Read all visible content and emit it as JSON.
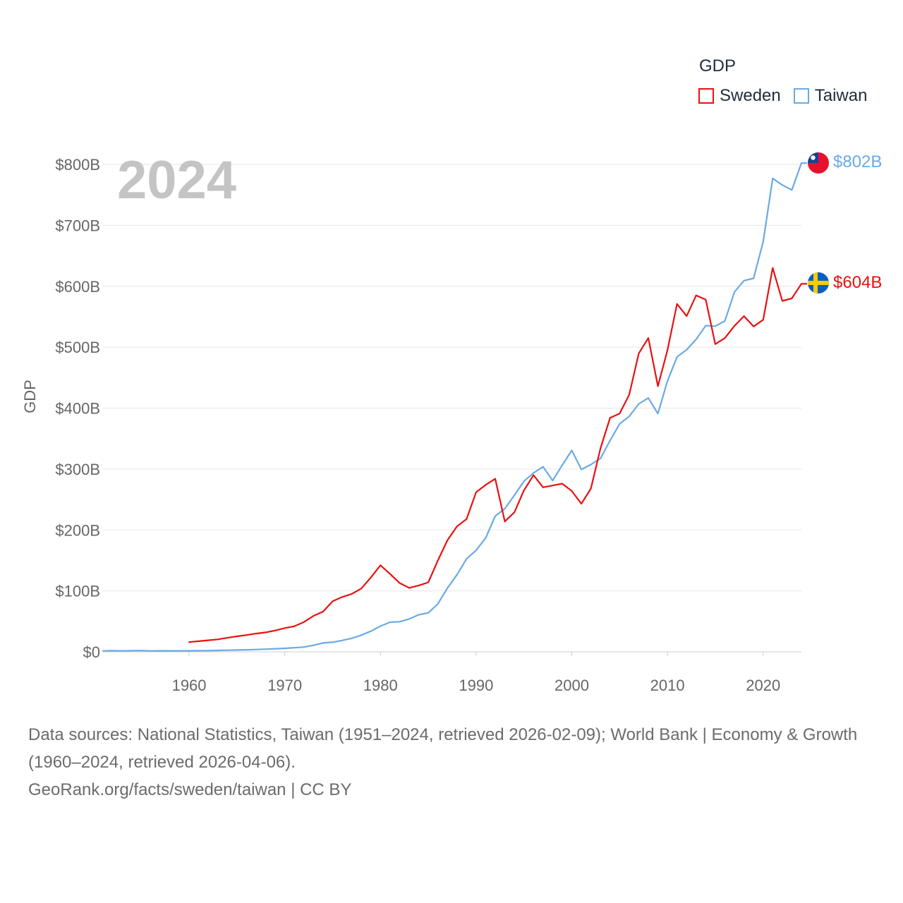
{
  "legend": {
    "title": "GDP",
    "items": [
      {
        "name": "Sweden",
        "color": "#e8110f"
      },
      {
        "name": "Taiwan",
        "color": "#6aaae4"
      }
    ]
  },
  "year_label": "2024",
  "end_labels": {
    "taiwan": "$802B",
    "sweden": "$604B"
  },
  "flags": {
    "taiwan": "taiwan-flag-icon",
    "sweden": "sweden-flag-icon"
  },
  "source": {
    "line1": "Data sources: National Statistics, Taiwan (1951–2024, retrieved 2026-02-09); World Bank | Economy & Growth (1960–2024, retrieved 2026-04-06).",
    "line2": "GeoRank.org/facts/sweden/taiwan | CC BY"
  },
  "chart_data": {
    "type": "line",
    "title": "GDP",
    "xlabel": "",
    "ylabel": "GDP",
    "xlim": [
      1951,
      2024
    ],
    "ylim": [
      0,
      800
    ],
    "y_unit": "billion USD",
    "grid": true,
    "legend_position": "top-right",
    "x_ticks": [
      1960,
      1970,
      1980,
      1990,
      2000,
      2010,
      2020
    ],
    "y_ticks": [
      {
        "value": 0,
        "label": "$0"
      },
      {
        "value": 100,
        "label": "$100B"
      },
      {
        "value": 200,
        "label": "$200B"
      },
      {
        "value": 300,
        "label": "$300B"
      },
      {
        "value": 400,
        "label": "$400B"
      },
      {
        "value": 500,
        "label": "$500B"
      },
      {
        "value": 600,
        "label": "$600B"
      },
      {
        "value": 700,
        "label": "$700B"
      },
      {
        "value": 800,
        "label": "$800B"
      }
    ],
    "series": [
      {
        "name": "Taiwan",
        "color": "#6aaae4",
        "x": [
          1951,
          1952,
          1953,
          1954,
          1955,
          1956,
          1957,
          1958,
          1959,
          1960,
          1961,
          1962,
          1963,
          1964,
          1965,
          1966,
          1967,
          1968,
          1969,
          1970,
          1971,
          1972,
          1973,
          1974,
          1975,
          1976,
          1977,
          1978,
          1979,
          1980,
          1981,
          1982,
          1983,
          1984,
          1985,
          1986,
          1987,
          1988,
          1989,
          1990,
          1991,
          1992,
          1993,
          1994,
          1995,
          1996,
          1997,
          1998,
          1999,
          2000,
          2001,
          2002,
          2003,
          2004,
          2005,
          2006,
          2007,
          2008,
          2009,
          2010,
          2011,
          2012,
          2013,
          2014,
          2015,
          2016,
          2017,
          2018,
          2019,
          2020,
          2021,
          2022,
          2023,
          2024
        ],
        "values": [
          1.5,
          1.8,
          1.6,
          1.9,
          2.1,
          1.5,
          1.7,
          1.6,
          1.6,
          1.7,
          1.8,
          2.0,
          2.3,
          2.7,
          3.0,
          3.3,
          3.8,
          4.4,
          5.1,
          5.8,
          6.7,
          7.9,
          10.8,
          14.6,
          15.7,
          18.7,
          22.2,
          27.4,
          33.9,
          42.3,
          48.6,
          49.4,
          53.9,
          60.9,
          64.0,
          78.7,
          104.7,
          126.5,
          152.6,
          166.6,
          187.0,
          222.9,
          235.0,
          257.0,
          280.0,
          293.6,
          303.8,
          281.1,
          306.5,
          330.7,
          299.3,
          307.4,
          317.4,
          346.9,
          374.1,
          386.5,
          406.9,
          416.6,
          391.0,
          444.3,
          484.0,
          495.8,
          512.9,
          535.3,
          534.5,
          543.0,
          590.7,
          609.2,
          613.0,
          673.0,
          777.0,
          766.2,
          758.0,
          802.0
        ]
      },
      {
        "name": "Sweden",
        "color": "#e8110f",
        "x": [
          1960,
          1961,
          1962,
          1963,
          1964,
          1965,
          1966,
          1967,
          1968,
          1969,
          1970,
          1971,
          1972,
          1973,
          1974,
          1975,
          1976,
          1977,
          1978,
          1979,
          1980,
          1981,
          1982,
          1983,
          1984,
          1985,
          1986,
          1987,
          1988,
          1989,
          1990,
          1991,
          1992,
          1993,
          1994,
          1995,
          1996,
          1997,
          1998,
          1999,
          2000,
          2001,
          2002,
          2003,
          2004,
          2005,
          2006,
          2007,
          2008,
          2009,
          2010,
          2011,
          2012,
          2013,
          2014,
          2015,
          2016,
          2017,
          2018,
          2019,
          2020,
          2021,
          2022,
          2023,
          2024
        ],
        "values": [
          16,
          17.5,
          19,
          20.5,
          23,
          25.5,
          27.5,
          30,
          32,
          35,
          39,
          42,
          49,
          59,
          66,
          83,
          90,
          95,
          104,
          122,
          142,
          128,
          113,
          105,
          109,
          114,
          150,
          183,
          206,
          218,
          262,
          274,
          284,
          214,
          229,
          265,
          290,
          270,
          273,
          276,
          264,
          243,
          268,
          334,
          384,
          391,
          422,
          490,
          515,
          436,
          495,
          571,
          551,
          585,
          578,
          505,
          515,
          535,
          551,
          534,
          545,
          630,
          576,
          580,
          604
        ]
      }
    ]
  }
}
